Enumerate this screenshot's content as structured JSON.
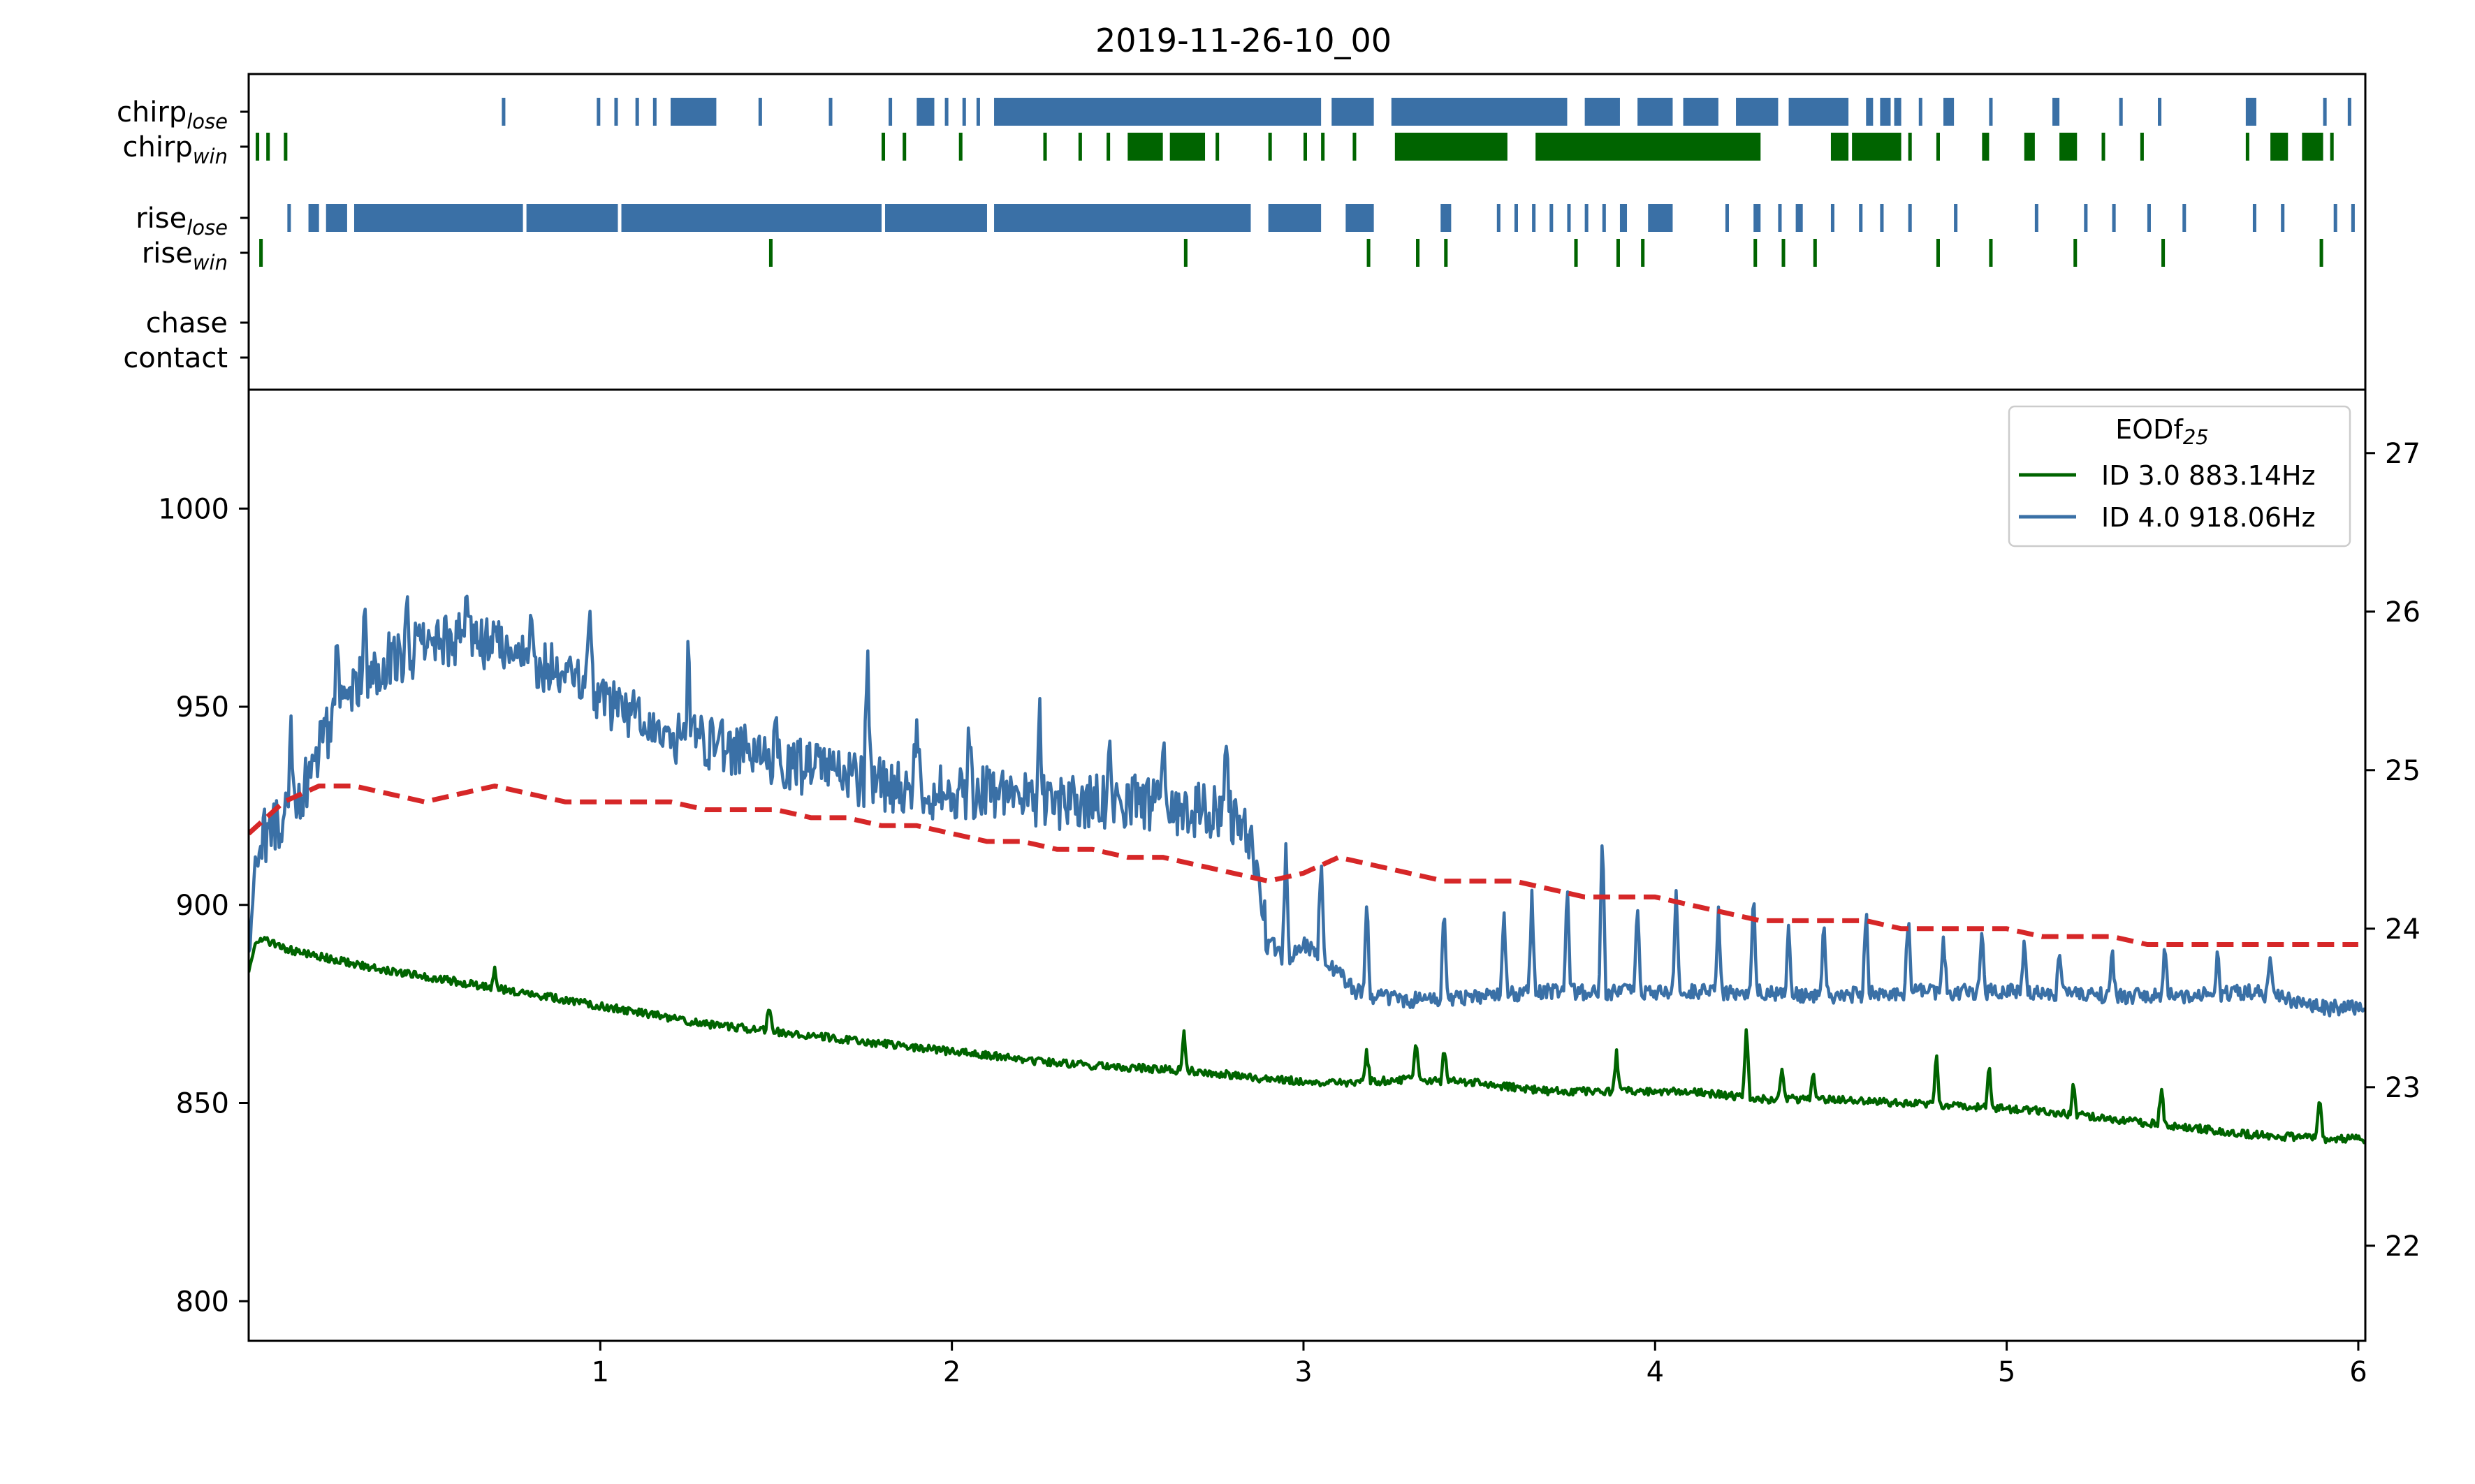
{
  "chart_data": [
    {
      "type": "scatter",
      "subtype": "event-raster",
      "title": "2019-11-26-10_00",
      "xlim": [
        0,
        6.02
      ],
      "rows": [
        {
          "label": "chirp",
          "sub": "lose",
          "color": "#3a70a6",
          "segments": [
            [
              0.72,
              0.73
            ],
            [
              0.99,
              1.0
            ],
            [
              1.04,
              1.05
            ],
            [
              1.1,
              1.11
            ],
            [
              1.15,
              1.16
            ],
            [
              1.2,
              1.33
            ],
            [
              1.45,
              1.46
            ],
            [
              1.65,
              1.66
            ],
            [
              1.82,
              1.83
            ],
            [
              1.9,
              1.95
            ],
            [
              1.98,
              1.99
            ],
            [
              2.03,
              2.04
            ],
            [
              2.07,
              2.08
            ],
            [
              2.12,
              3.05
            ],
            [
              3.08,
              3.2
            ],
            [
              3.25,
              3.75
            ],
            [
              3.8,
              3.9
            ],
            [
              3.95,
              4.05
            ],
            [
              4.08,
              4.18
            ],
            [
              4.23,
              4.35
            ],
            [
              4.38,
              4.55
            ],
            [
              4.6,
              4.62
            ],
            [
              4.64,
              4.67
            ],
            [
              4.68,
              4.7
            ],
            [
              4.75,
              4.76
            ],
            [
              4.82,
              4.85
            ],
            [
              4.95,
              4.96
            ],
            [
              5.13,
              5.15
            ],
            [
              5.32,
              5.33
            ],
            [
              5.43,
              5.44
            ],
            [
              5.68,
              5.71
            ],
            [
              5.9,
              5.91
            ],
            [
              5.97,
              5.98
            ]
          ]
        },
        {
          "label": "chirp",
          "sub": "win",
          "color": "#006400",
          "segments": [
            [
              0.02,
              0.03
            ],
            [
              0.05,
              0.06
            ],
            [
              0.1,
              0.11
            ],
            [
              1.8,
              1.81
            ],
            [
              1.86,
              1.87
            ],
            [
              2.02,
              2.03
            ],
            [
              2.26,
              2.27
            ],
            [
              2.36,
              2.37
            ],
            [
              2.44,
              2.45
            ],
            [
              2.5,
              2.6
            ],
            [
              2.62,
              2.72
            ],
            [
              2.75,
              2.76
            ],
            [
              2.9,
              2.91
            ],
            [
              3.0,
              3.01
            ],
            [
              3.05,
              3.06
            ],
            [
              3.14,
              3.15
            ],
            [
              3.26,
              3.58
            ],
            [
              3.66,
              4.3
            ],
            [
              4.5,
              4.55
            ],
            [
              4.56,
              4.7
            ],
            [
              4.72,
              4.73
            ],
            [
              4.8,
              4.81
            ],
            [
              4.93,
              4.95
            ],
            [
              5.05,
              5.08
            ],
            [
              5.15,
              5.2
            ],
            [
              5.27,
              5.28
            ],
            [
              5.38,
              5.39
            ],
            [
              5.68,
              5.69
            ],
            [
              5.75,
              5.8
            ],
            [
              5.84,
              5.9
            ],
            [
              5.92,
              5.93
            ]
          ]
        },
        {
          "label": "rise",
          "sub": "lose",
          "color": "#3a70a6",
          "segments": [
            [
              0.11,
              0.12
            ],
            [
              0.17,
              0.2
            ],
            [
              0.22,
              0.28
            ],
            [
              0.3,
              0.78
            ],
            [
              0.79,
              1.05
            ],
            [
              1.06,
              1.8
            ],
            [
              1.81,
              2.1
            ],
            [
              2.12,
              2.85
            ],
            [
              2.9,
              3.05
            ],
            [
              3.12,
              3.2
            ],
            [
              3.39,
              3.42
            ],
            [
              3.55,
              3.56
            ],
            [
              3.6,
              3.61
            ],
            [
              3.65,
              3.66
            ],
            [
              3.7,
              3.71
            ],
            [
              3.75,
              3.76
            ],
            [
              3.8,
              3.81
            ],
            [
              3.85,
              3.86
            ],
            [
              3.9,
              3.92
            ],
            [
              3.98,
              4.05
            ],
            [
              4.2,
              4.21
            ],
            [
              4.28,
              4.3
            ],
            [
              4.35,
              4.36
            ],
            [
              4.4,
              4.42
            ],
            [
              4.5,
              4.51
            ],
            [
              4.58,
              4.59
            ],
            [
              4.64,
              4.65
            ],
            [
              4.72,
              4.73
            ],
            [
              4.85,
              4.86
            ],
            [
              5.08,
              5.09
            ],
            [
              5.22,
              5.23
            ],
            [
              5.3,
              5.31
            ],
            [
              5.4,
              5.41
            ],
            [
              5.5,
              5.51
            ],
            [
              5.7,
              5.71
            ],
            [
              5.78,
              5.79
            ],
            [
              5.93,
              5.94
            ],
            [
              5.98,
              5.99
            ]
          ]
        },
        {
          "label": "rise",
          "sub": "win",
          "color": "#006400",
          "segments": [
            [
              0.03,
              0.04
            ],
            [
              1.48,
              1.49
            ],
            [
              2.66,
              2.67
            ],
            [
              3.18,
              3.19
            ],
            [
              3.32,
              3.33
            ],
            [
              3.4,
              3.41
            ],
            [
              3.77,
              3.78
            ],
            [
              3.89,
              3.9
            ],
            [
              3.96,
              3.97
            ],
            [
              4.28,
              4.29
            ],
            [
              4.36,
              4.37
            ],
            [
              4.45,
              4.46
            ],
            [
              4.8,
              4.81
            ],
            [
              4.95,
              4.96
            ],
            [
              5.19,
              5.2
            ],
            [
              5.44,
              5.45
            ],
            [
              5.89,
              5.9
            ]
          ]
        },
        {
          "label": "chase",
          "sub": "",
          "color": "#000000",
          "segments": []
        },
        {
          "label": "contact",
          "sub": "",
          "color": "#000000",
          "segments": []
        }
      ]
    },
    {
      "type": "line",
      "xlim": [
        0,
        6.02
      ],
      "ylim": [
        790,
        1030
      ],
      "y2lim": [
        21.4,
        27.4
      ],
      "xticks": [
        1,
        2,
        3,
        4,
        5,
        6
      ],
      "yticks": [
        800,
        850,
        900,
        950,
        1000
      ],
      "y2ticks": [
        22,
        23,
        24,
        25,
        26,
        27
      ],
      "legend": {
        "title": "EODf",
        "title_sub": "25",
        "position": "top-right"
      },
      "series": [
        {
          "name": "ID 3.0 883.14Hz",
          "color": "#006400",
          "axis": "left",
          "x": [
            0.0,
            0.02,
            0.05,
            0.1,
            0.2,
            0.3,
            0.5,
            0.7,
            0.9,
            1.1,
            1.3,
            1.5,
            1.7,
            1.9,
            2.1,
            2.3,
            2.5,
            2.7,
            2.9,
            3.1,
            3.3,
            3.5,
            3.7,
            3.9,
            4.1,
            4.3,
            4.5,
            4.7,
            4.9,
            5.1,
            5.3,
            5.5,
            5.7,
            5.9,
            6.02
          ],
          "y": [
            884,
            891,
            891,
            889,
            887,
            885,
            882,
            879,
            876,
            873,
            870,
            868,
            866,
            864,
            862,
            860,
            859,
            858,
            856,
            855,
            856,
            855,
            853,
            853,
            853,
            851,
            851,
            850,
            849,
            848,
            846,
            844,
            842,
            841,
            841
          ]
        },
        {
          "name": "ID 4.0 918.06Hz",
          "color": "#3a70a6",
          "axis": "left",
          "x": [
            0.0,
            0.02,
            0.05,
            0.1,
            0.15,
            0.2,
            0.3,
            0.4,
            0.5,
            0.6,
            0.7,
            0.8,
            0.9,
            1.0,
            1.1,
            1.2,
            1.3,
            1.4,
            1.5,
            1.6,
            1.7,
            1.8,
            1.9,
            2.0,
            2.1,
            2.2,
            2.3,
            2.4,
            2.5,
            2.6,
            2.7,
            2.8,
            2.85,
            2.9,
            2.95,
            3.0,
            3.05,
            3.1,
            3.15,
            3.2,
            3.3,
            3.4,
            3.5,
            3.7,
            3.9,
            4.1,
            4.3,
            4.5,
            4.7,
            4.9,
            5.1,
            5.3,
            5.5,
            5.7,
            5.8,
            5.9,
            6.02
          ],
          "y": [
            885,
            915,
            918,
            922,
            927,
            940,
            955,
            962,
            965,
            967,
            965,
            962,
            958,
            953,
            947,
            943,
            941,
            939,
            937,
            934,
            932,
            930,
            929,
            928,
            928,
            927,
            926,
            926,
            926,
            925,
            924,
            922,
            918,
            892,
            885,
            890,
            887,
            883,
            878,
            877,
            876,
            876,
            877,
            878,
            878,
            878,
            878,
            877,
            878,
            878,
            878,
            877,
            877,
            878,
            876,
            874,
            874
          ]
        },
        {
          "name": "",
          "color": "#d62728",
          "dashed": true,
          "axis": "right",
          "x": [
            0.0,
            0.1,
            0.2,
            0.3,
            0.4,
            0.5,
            0.6,
            0.7,
            0.8,
            0.9,
            1.0,
            1.1,
            1.2,
            1.3,
            1.4,
            1.5,
            1.6,
            1.7,
            1.8,
            1.9,
            2.0,
            2.1,
            2.2,
            2.3,
            2.4,
            2.5,
            2.6,
            2.7,
            2.8,
            2.9,
            3.0,
            3.1,
            3.2,
            3.3,
            3.4,
            3.5,
            3.6,
            3.7,
            3.8,
            3.9,
            4.0,
            4.1,
            4.2,
            4.3,
            4.4,
            4.5,
            4.6,
            4.7,
            4.8,
            4.9,
            5.0,
            5.1,
            5.2,
            5.3,
            5.4,
            5.5,
            5.6,
            5.7,
            5.8,
            5.9,
            6.0
          ],
          "y": [
            24.6,
            24.8,
            24.9,
            24.9,
            24.85,
            24.8,
            24.85,
            24.9,
            24.85,
            24.8,
            24.8,
            24.8,
            24.8,
            24.75,
            24.75,
            24.75,
            24.7,
            24.7,
            24.65,
            24.65,
            24.6,
            24.55,
            24.55,
            24.5,
            24.5,
            24.45,
            24.45,
            24.4,
            24.35,
            24.3,
            24.35,
            24.45,
            24.4,
            24.35,
            24.3,
            24.3,
            24.3,
            24.25,
            24.2,
            24.2,
            24.2,
            24.15,
            24.1,
            24.05,
            24.05,
            24.05,
            24.05,
            24.0,
            24.0,
            24.0,
            24.0,
            23.95,
            23.95,
            23.95,
            23.9,
            23.9,
            23.9,
            23.9,
            23.9,
            23.9,
            23.9
          ]
        }
      ],
      "spikes": [
        {
          "series": 0,
          "x": [
            0.7,
            1.48,
            2.66,
            3.18,
            3.32,
            3.4,
            3.89,
            4.26,
            4.36,
            4.45,
            4.8,
            4.95,
            5.19,
            5.44,
            5.89
          ],
          "h": [
            5,
            7,
            10,
            8,
            10,
            9,
            10,
            18,
            8,
            7,
            13,
            11,
            8,
            10,
            12
          ]
        },
        {
          "series": 1,
          "x": [
            0.12,
            0.25,
            0.33,
            0.45,
            0.62,
            0.8,
            0.97,
            1.25,
            1.5,
            1.76,
            1.9,
            2.05,
            2.25,
            2.45,
            2.6,
            2.78,
            2.95,
            3.05,
            3.18,
            3.4,
            3.57,
            3.65,
            3.75,
            3.85,
            3.95,
            4.06,
            4.18,
            4.28,
            4.38,
            4.48,
            4.6,
            4.72,
            4.82,
            4.93,
            5.05,
            5.15,
            5.3,
            5.45,
            5.6,
            5.75
          ],
          "h": [
            25,
            15,
            12,
            15,
            12,
            10,
            15,
            20,
            12,
            35,
            20,
            18,
            20,
            15,
            18,
            20,
            30,
            25,
            25,
            25,
            22,
            25,
            28,
            40,
            22,
            25,
            20,
            25,
            18,
            20,
            22,
            20,
            15,
            15,
            15,
            12,
            12,
            15,
            12,
            10
          ]
        }
      ]
    }
  ]
}
